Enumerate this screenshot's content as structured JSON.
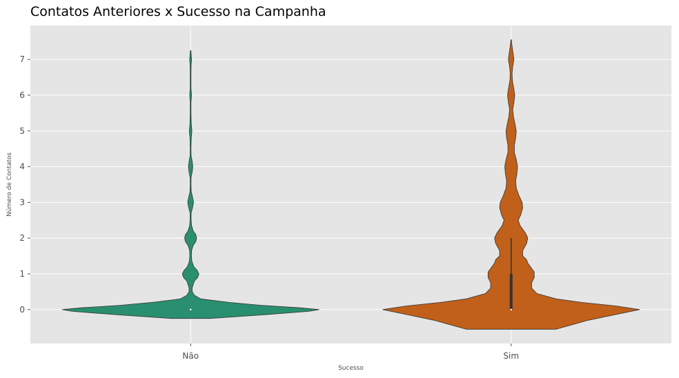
{
  "chart_data": {
    "type": "violin",
    "title": "Contatos Anteriores x Sucesso na Campanha",
    "xlabel": "Sucesso",
    "ylabel": "Número de Contatos",
    "categories": [
      "Não",
      "Sim"
    ],
    "y_ticks": [
      0,
      1,
      2,
      3,
      4,
      5,
      6,
      7
    ],
    "ylim": [
      -0.95,
      7.95
    ],
    "grid": true,
    "series": [
      {
        "category": "Não",
        "color": "#2a8f6f",
        "y_range": [
          -0.25,
          7.25
        ],
        "density": [
          [
            -0.25,
            0.15
          ],
          [
            -0.15,
            0.55
          ],
          [
            -0.05,
            0.92
          ],
          [
            0.0,
            1.0
          ],
          [
            0.05,
            0.85
          ],
          [
            0.12,
            0.55
          ],
          [
            0.2,
            0.3
          ],
          [
            0.3,
            0.08
          ],
          [
            0.4,
            0.03
          ],
          [
            0.5,
            0.012
          ],
          [
            0.6,
            0.012
          ],
          [
            0.7,
            0.02
          ],
          [
            0.8,
            0.03
          ],
          [
            0.9,
            0.055
          ],
          [
            1.0,
            0.065
          ],
          [
            1.1,
            0.05
          ],
          [
            1.2,
            0.025
          ],
          [
            1.35,
            0.01
          ],
          [
            1.5,
            0.006
          ],
          [
            1.65,
            0.008
          ],
          [
            1.8,
            0.02
          ],
          [
            1.9,
            0.04
          ],
          [
            2.0,
            0.047
          ],
          [
            2.1,
            0.04
          ],
          [
            2.2,
            0.02
          ],
          [
            2.35,
            0.008
          ],
          [
            2.5,
            0.004
          ],
          [
            2.7,
            0.004
          ],
          [
            2.85,
            0.015
          ],
          [
            3.0,
            0.023
          ],
          [
            3.15,
            0.015
          ],
          [
            3.3,
            0.005
          ],
          [
            3.5,
            0.003
          ],
          [
            3.7,
            0.004
          ],
          [
            3.85,
            0.012
          ],
          [
            4.0,
            0.017
          ],
          [
            4.15,
            0.012
          ],
          [
            4.3,
            0.004
          ],
          [
            4.5,
            0.003
          ],
          [
            4.8,
            0.005
          ],
          [
            5.0,
            0.01
          ],
          [
            5.2,
            0.005
          ],
          [
            5.5,
            0.003
          ],
          [
            5.8,
            0.003
          ],
          [
            6.0,
            0.007
          ],
          [
            6.2,
            0.003
          ],
          [
            6.6,
            0.003
          ],
          [
            6.85,
            0.004
          ],
          [
            7.0,
            0.007
          ],
          [
            7.15,
            0.004
          ],
          [
            7.25,
            0.002
          ]
        ],
        "box": {
          "q1": 0,
          "median": 0,
          "q3": 0,
          "whisker_low": 0,
          "whisker_high": 0
        }
      },
      {
        "category": "Sim",
        "color": "#c0601a",
        "y_range": [
          -0.55,
          7.55
        ],
        "density": [
          [
            -0.55,
            0.35
          ],
          [
            -0.45,
            0.45
          ],
          [
            -0.3,
            0.6
          ],
          [
            -0.15,
            0.8
          ],
          [
            0.0,
            1.0
          ],
          [
            0.1,
            0.82
          ],
          [
            0.2,
            0.55
          ],
          [
            0.3,
            0.35
          ],
          [
            0.45,
            0.2
          ],
          [
            0.6,
            0.16
          ],
          [
            0.75,
            0.16
          ],
          [
            0.9,
            0.18
          ],
          [
            1.05,
            0.18
          ],
          [
            1.2,
            0.15
          ],
          [
            1.3,
            0.13
          ],
          [
            1.4,
            0.12
          ],
          [
            1.5,
            0.09
          ],
          [
            1.65,
            0.09
          ],
          [
            1.85,
            0.12
          ],
          [
            2.0,
            0.13
          ],
          [
            2.15,
            0.11
          ],
          [
            2.35,
            0.07
          ],
          [
            2.5,
            0.055
          ],
          [
            2.65,
            0.075
          ],
          [
            2.85,
            0.09
          ],
          [
            3.0,
            0.085
          ],
          [
            3.2,
            0.06
          ],
          [
            3.4,
            0.04
          ],
          [
            3.6,
            0.035
          ],
          [
            3.8,
            0.045
          ],
          [
            4.0,
            0.05
          ],
          [
            4.2,
            0.04
          ],
          [
            4.4,
            0.025
          ],
          [
            4.6,
            0.025
          ],
          [
            4.8,
            0.035
          ],
          [
            5.0,
            0.04
          ],
          [
            5.2,
            0.03
          ],
          [
            5.4,
            0.018
          ],
          [
            5.6,
            0.012
          ],
          [
            5.8,
            0.022
          ],
          [
            6.0,
            0.028
          ],
          [
            6.2,
            0.02
          ],
          [
            6.4,
            0.01
          ],
          [
            6.6,
            0.007
          ],
          [
            6.8,
            0.012
          ],
          [
            7.0,
            0.022
          ],
          [
            7.2,
            0.014
          ],
          [
            7.4,
            0.006
          ],
          [
            7.55,
            0.002
          ]
        ],
        "box": {
          "q1": 0,
          "median": 0,
          "q3": 1,
          "whisker_low": 0,
          "whisker_high": 2
        }
      }
    ]
  }
}
